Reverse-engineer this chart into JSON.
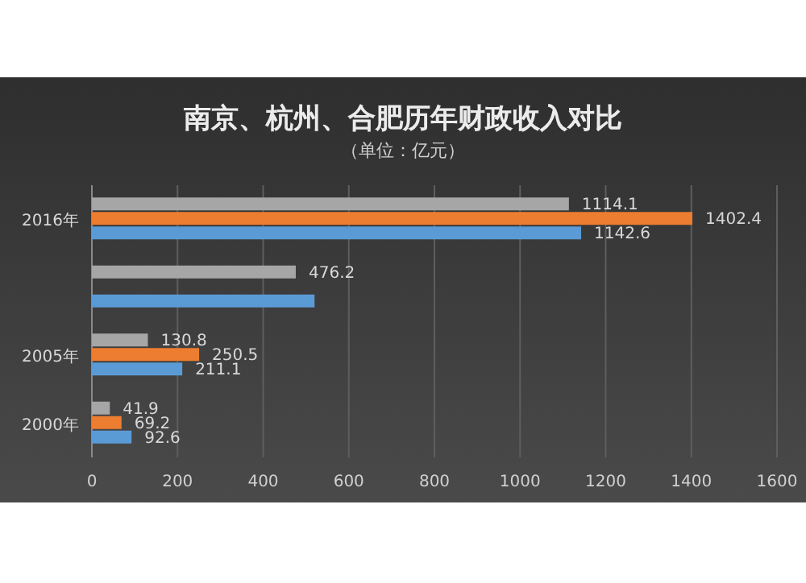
{
  "chart_data": {
    "type": "bar",
    "orientation": "horizontal",
    "title": "南京、杭州、合肥历年财政收入对比",
    "subtitle": "（单位：亿元）",
    "categories": [
      "2016年",
      null,
      "2005年",
      "2000年"
    ],
    "series": [
      {
        "color": "#a6a6a6",
        "values": [
          1114.1,
          476.2,
          130.8,
          41.9
        ],
        "value_labels": [
          "1114.1",
          "476.2",
          "130.8",
          "41.9"
        ]
      },
      {
        "color": "#ed7d31",
        "values": [
          1402.4,
          null,
          250.5,
          69.2
        ],
        "value_labels": [
          "1402.4",
          null,
          "250.5",
          "69.2"
        ]
      },
      {
        "color": "#5b9bd5",
        "values": [
          1142.6,
          520,
          211.1,
          92.6
        ],
        "value_labels": [
          "1142.6",
          null,
          "211.1",
          "92.6"
        ]
      }
    ],
    "xlim": [
      0,
      1600
    ],
    "xticks": [
      0,
      200,
      400,
      600,
      800,
      1000,
      1200,
      1400,
      1600
    ],
    "grid": "x"
  }
}
